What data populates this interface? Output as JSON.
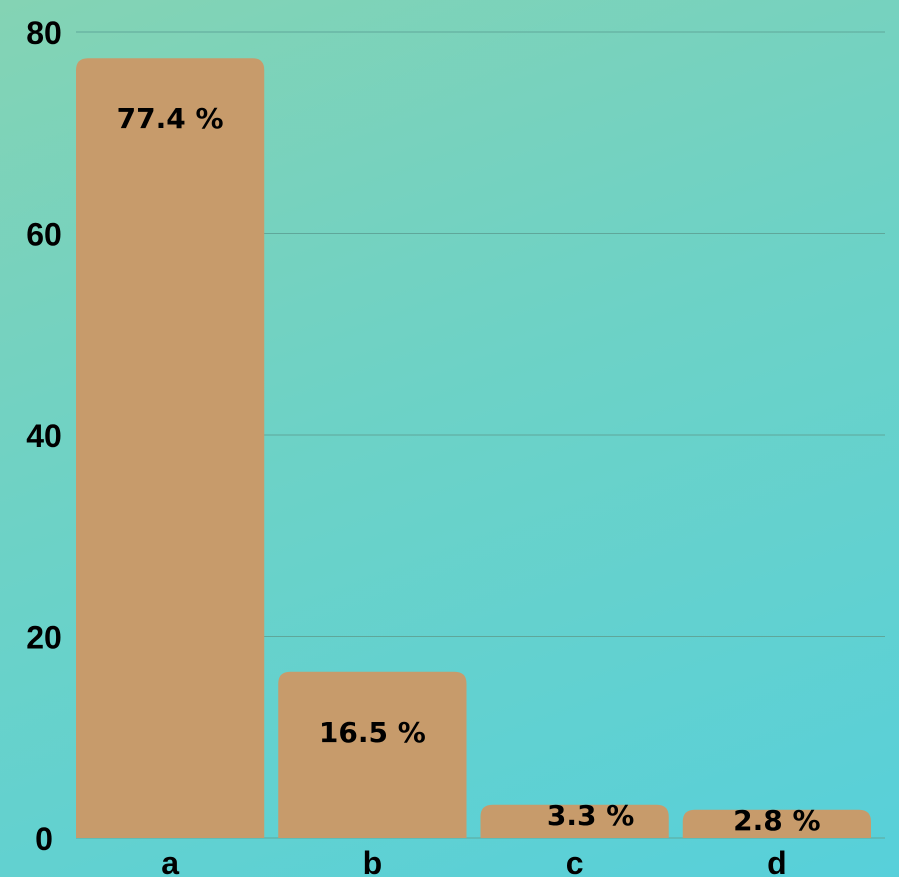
{
  "chart_data": {
    "type": "bar",
    "categories": [
      "a",
      "b",
      "c",
      "d"
    ],
    "values": [
      77.4,
      16.5,
      3.3,
      2.8
    ],
    "data_labels": [
      "77.4 %",
      "16.5 %",
      "3.3 %",
      "2.8 %"
    ],
    "ylim": [
      0,
      80
    ],
    "yticks": [
      "0",
      "20",
      "40",
      "60",
      "80"
    ],
    "grid": true,
    "bar_color": "#c79b6b",
    "grid_color": "#5fa79a"
  }
}
